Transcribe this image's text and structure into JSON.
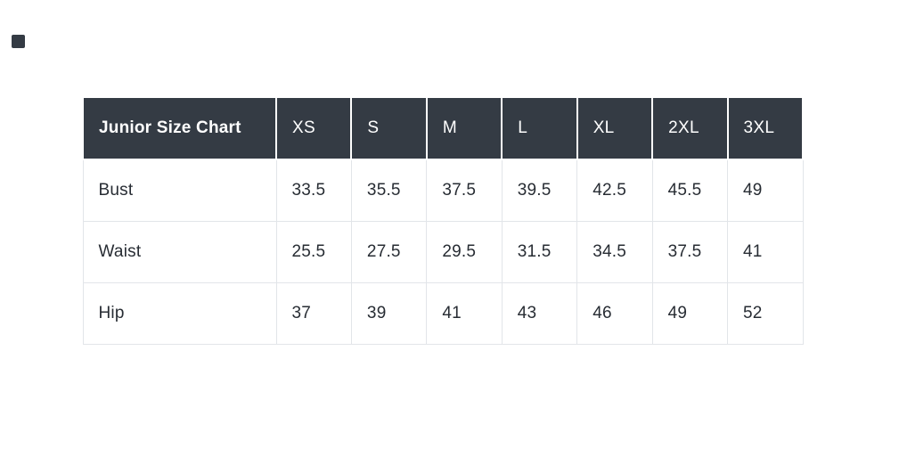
{
  "chart_data": {
    "type": "table",
    "title": "Junior Size Chart",
    "categories": [
      "XS",
      "S",
      "M",
      "L",
      "XL",
      "2XL",
      "3XL"
    ],
    "series": [
      {
        "name": "Bust",
        "values": [
          33.5,
          35.5,
          37.5,
          39.5,
          42.5,
          45.5,
          49
        ]
      },
      {
        "name": "Waist",
        "values": [
          25.5,
          27.5,
          29.5,
          31.5,
          34.5,
          37.5,
          41
        ]
      },
      {
        "name": "Hip",
        "values": [
          37,
          39,
          41,
          43,
          46,
          49,
          52
        ]
      }
    ],
    "units": "inches (not labeled on screen)",
    "layout": {
      "header_position": "top-row",
      "grid": true
    }
  },
  "colors": {
    "header_background": "#343b44",
    "header_text": "#ffffff",
    "body_text": "#272c33",
    "grid_border": "#e2e5e9",
    "page_background": "#ffffff"
  }
}
